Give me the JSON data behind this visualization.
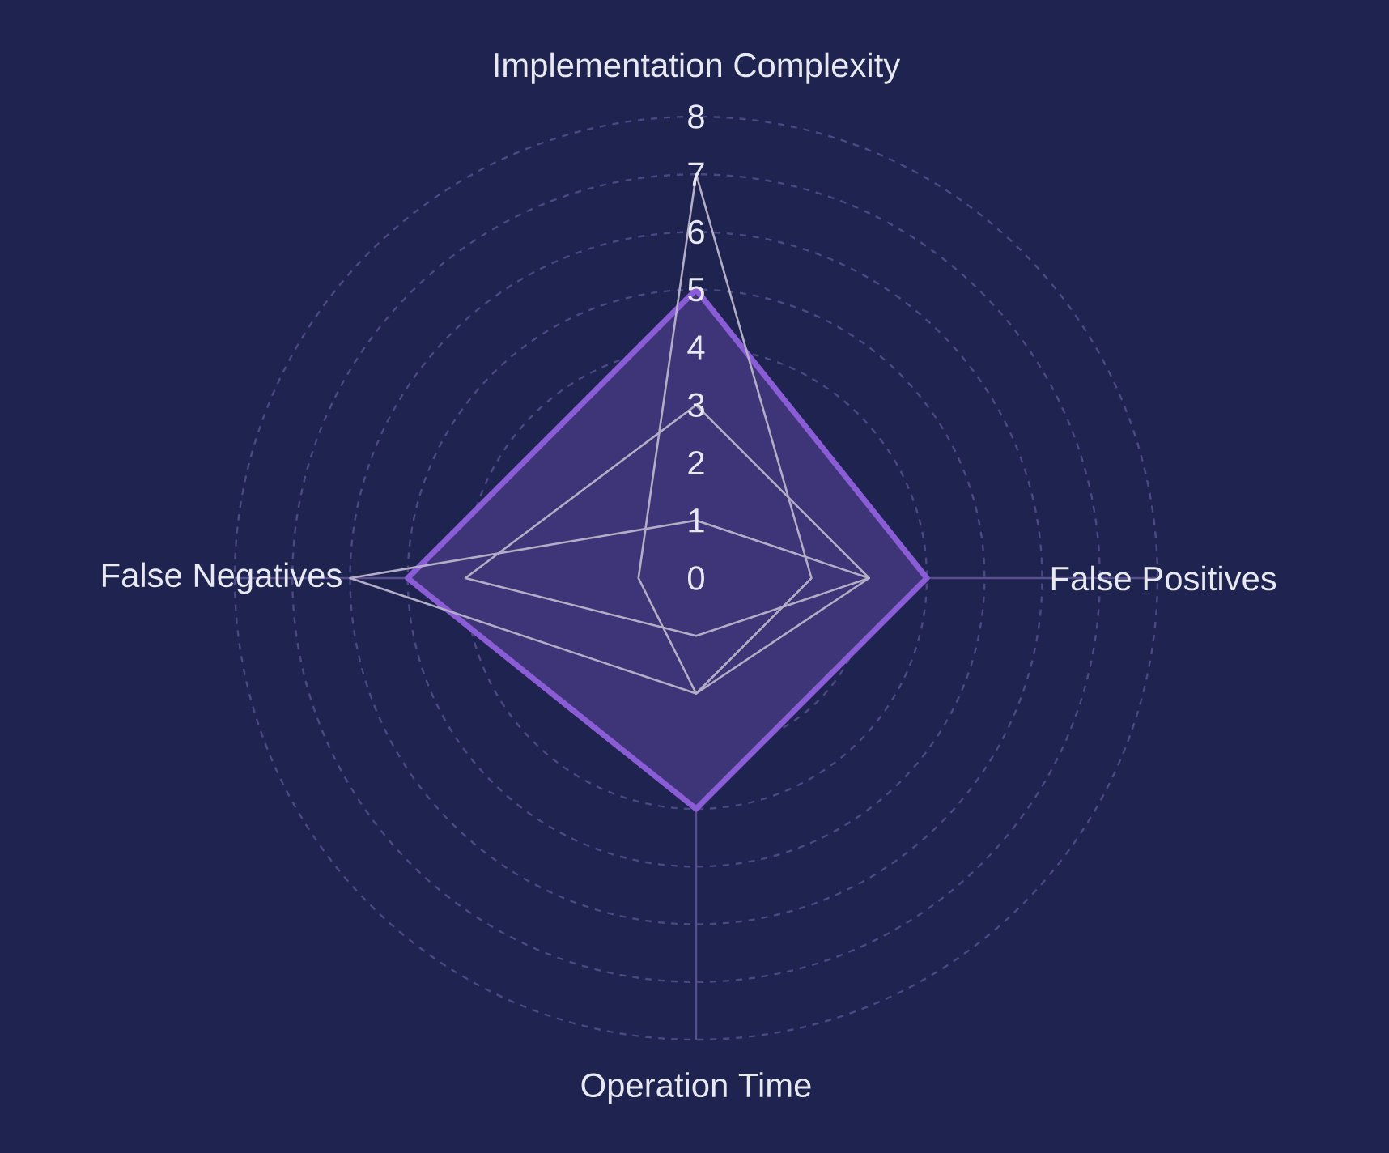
{
  "chart_data": {
    "type": "radar",
    "categories": [
      "Implementation Complexity",
      "False Positives",
      "Operation Time",
      "False Negatives"
    ],
    "ylim": [
      0,
      8
    ],
    "yticks": [
      0,
      1,
      2,
      3,
      4,
      5,
      6,
      7,
      8
    ],
    "grid": true,
    "series": [
      {
        "color": "#8a5cd6",
        "values": [
          5,
          4,
          4,
          5
        ]
      },
      {
        "color": "#b3adc6",
        "values": [
          7,
          2,
          2,
          1
        ]
      },
      {
        "color": "#b3adc6",
        "values": [
          3,
          3,
          1,
          4
        ]
      },
      {
        "color": "#b3adc6",
        "values": [
          1,
          3,
          2,
          6
        ]
      }
    ]
  }
}
